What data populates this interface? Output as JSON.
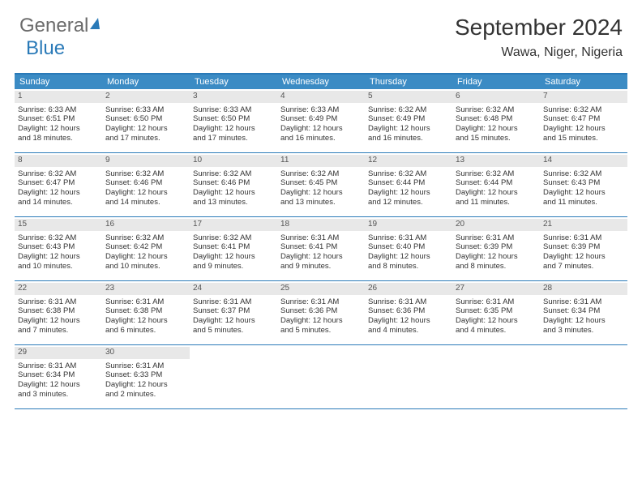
{
  "logo": {
    "text1": "General",
    "text2": "Blue"
  },
  "title": "September 2024",
  "location": "Wawa, Niger, Nigeria",
  "colors": {
    "header_bg": "#3b8bc4",
    "border": "#2a7ab8",
    "daynum_bg": "#e8e8e8",
    "text": "#333333"
  },
  "dow": [
    "Sunday",
    "Monday",
    "Tuesday",
    "Wednesday",
    "Thursday",
    "Friday",
    "Saturday"
  ],
  "weeks": [
    [
      {
        "n": "1",
        "sr": "Sunrise: 6:33 AM",
        "ss": "Sunset: 6:51 PM",
        "d1": "Daylight: 12 hours",
        "d2": "and 18 minutes."
      },
      {
        "n": "2",
        "sr": "Sunrise: 6:33 AM",
        "ss": "Sunset: 6:50 PM",
        "d1": "Daylight: 12 hours",
        "d2": "and 17 minutes."
      },
      {
        "n": "3",
        "sr": "Sunrise: 6:33 AM",
        "ss": "Sunset: 6:50 PM",
        "d1": "Daylight: 12 hours",
        "d2": "and 17 minutes."
      },
      {
        "n": "4",
        "sr": "Sunrise: 6:33 AM",
        "ss": "Sunset: 6:49 PM",
        "d1": "Daylight: 12 hours",
        "d2": "and 16 minutes."
      },
      {
        "n": "5",
        "sr": "Sunrise: 6:32 AM",
        "ss": "Sunset: 6:49 PM",
        "d1": "Daylight: 12 hours",
        "d2": "and 16 minutes."
      },
      {
        "n": "6",
        "sr": "Sunrise: 6:32 AM",
        "ss": "Sunset: 6:48 PM",
        "d1": "Daylight: 12 hours",
        "d2": "and 15 minutes."
      },
      {
        "n": "7",
        "sr": "Sunrise: 6:32 AM",
        "ss": "Sunset: 6:47 PM",
        "d1": "Daylight: 12 hours",
        "d2": "and 15 minutes."
      }
    ],
    [
      {
        "n": "8",
        "sr": "Sunrise: 6:32 AM",
        "ss": "Sunset: 6:47 PM",
        "d1": "Daylight: 12 hours",
        "d2": "and 14 minutes."
      },
      {
        "n": "9",
        "sr": "Sunrise: 6:32 AM",
        "ss": "Sunset: 6:46 PM",
        "d1": "Daylight: 12 hours",
        "d2": "and 14 minutes."
      },
      {
        "n": "10",
        "sr": "Sunrise: 6:32 AM",
        "ss": "Sunset: 6:46 PM",
        "d1": "Daylight: 12 hours",
        "d2": "and 13 minutes."
      },
      {
        "n": "11",
        "sr": "Sunrise: 6:32 AM",
        "ss": "Sunset: 6:45 PM",
        "d1": "Daylight: 12 hours",
        "d2": "and 13 minutes."
      },
      {
        "n": "12",
        "sr": "Sunrise: 6:32 AM",
        "ss": "Sunset: 6:44 PM",
        "d1": "Daylight: 12 hours",
        "d2": "and 12 minutes."
      },
      {
        "n": "13",
        "sr": "Sunrise: 6:32 AM",
        "ss": "Sunset: 6:44 PM",
        "d1": "Daylight: 12 hours",
        "d2": "and 11 minutes."
      },
      {
        "n": "14",
        "sr": "Sunrise: 6:32 AM",
        "ss": "Sunset: 6:43 PM",
        "d1": "Daylight: 12 hours",
        "d2": "and 11 minutes."
      }
    ],
    [
      {
        "n": "15",
        "sr": "Sunrise: 6:32 AM",
        "ss": "Sunset: 6:43 PM",
        "d1": "Daylight: 12 hours",
        "d2": "and 10 minutes."
      },
      {
        "n": "16",
        "sr": "Sunrise: 6:32 AM",
        "ss": "Sunset: 6:42 PM",
        "d1": "Daylight: 12 hours",
        "d2": "and 10 minutes."
      },
      {
        "n": "17",
        "sr": "Sunrise: 6:32 AM",
        "ss": "Sunset: 6:41 PM",
        "d1": "Daylight: 12 hours",
        "d2": "and 9 minutes."
      },
      {
        "n": "18",
        "sr": "Sunrise: 6:31 AM",
        "ss": "Sunset: 6:41 PM",
        "d1": "Daylight: 12 hours",
        "d2": "and 9 minutes."
      },
      {
        "n": "19",
        "sr": "Sunrise: 6:31 AM",
        "ss": "Sunset: 6:40 PM",
        "d1": "Daylight: 12 hours",
        "d2": "and 8 minutes."
      },
      {
        "n": "20",
        "sr": "Sunrise: 6:31 AM",
        "ss": "Sunset: 6:39 PM",
        "d1": "Daylight: 12 hours",
        "d2": "and 8 minutes."
      },
      {
        "n": "21",
        "sr": "Sunrise: 6:31 AM",
        "ss": "Sunset: 6:39 PM",
        "d1": "Daylight: 12 hours",
        "d2": "and 7 minutes."
      }
    ],
    [
      {
        "n": "22",
        "sr": "Sunrise: 6:31 AM",
        "ss": "Sunset: 6:38 PM",
        "d1": "Daylight: 12 hours",
        "d2": "and 7 minutes."
      },
      {
        "n": "23",
        "sr": "Sunrise: 6:31 AM",
        "ss": "Sunset: 6:38 PM",
        "d1": "Daylight: 12 hours",
        "d2": "and 6 minutes."
      },
      {
        "n": "24",
        "sr": "Sunrise: 6:31 AM",
        "ss": "Sunset: 6:37 PM",
        "d1": "Daylight: 12 hours",
        "d2": "and 5 minutes."
      },
      {
        "n": "25",
        "sr": "Sunrise: 6:31 AM",
        "ss": "Sunset: 6:36 PM",
        "d1": "Daylight: 12 hours",
        "d2": "and 5 minutes."
      },
      {
        "n": "26",
        "sr": "Sunrise: 6:31 AM",
        "ss": "Sunset: 6:36 PM",
        "d1": "Daylight: 12 hours",
        "d2": "and 4 minutes."
      },
      {
        "n": "27",
        "sr": "Sunrise: 6:31 AM",
        "ss": "Sunset: 6:35 PM",
        "d1": "Daylight: 12 hours",
        "d2": "and 4 minutes."
      },
      {
        "n": "28",
        "sr": "Sunrise: 6:31 AM",
        "ss": "Sunset: 6:34 PM",
        "d1": "Daylight: 12 hours",
        "d2": "and 3 minutes."
      }
    ],
    [
      {
        "n": "29",
        "sr": "Sunrise: 6:31 AM",
        "ss": "Sunset: 6:34 PM",
        "d1": "Daylight: 12 hours",
        "d2": "and 3 minutes."
      },
      {
        "n": "30",
        "sr": "Sunrise: 6:31 AM",
        "ss": "Sunset: 6:33 PM",
        "d1": "Daylight: 12 hours",
        "d2": "and 2 minutes."
      },
      {
        "empty": true
      },
      {
        "empty": true
      },
      {
        "empty": true
      },
      {
        "empty": true
      },
      {
        "empty": true
      }
    ]
  ]
}
